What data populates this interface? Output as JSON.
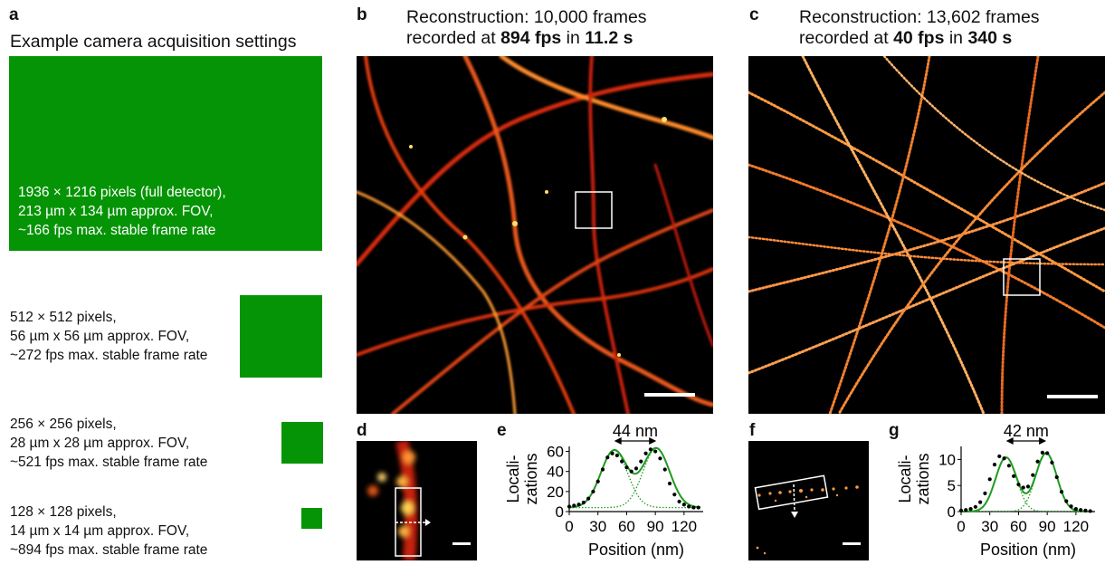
{
  "panels": {
    "a": {
      "label": "a",
      "title": "Example camera acquisition settings",
      "settings": [
        {
          "line1": "1936 × 1216 pixels (full detector),",
          "line2": "213 µm x 134 µm approx. FOV,",
          "line3": "~166 fps max. stable frame rate"
        },
        {
          "line1": "512 × 512 pixels,",
          "line2": "56 µm x 56 µm approx. FOV,",
          "line3": "~272 fps max. stable frame rate"
        },
        {
          "line1": "256 × 256 pixels,",
          "line2": "28 µm x 28 µm approx. FOV,",
          "line3": "~521 fps max. stable frame rate"
        },
        {
          "line1": "128 × 128 pixels,",
          "line2": "14 µm x 14 µm approx. FOV,",
          "line3": "~894 fps max. stable frame rate"
        }
      ],
      "box_color": "#059405"
    },
    "b": {
      "label": "b",
      "title_line1": "Reconstruction: 10,000 frames",
      "title_prefix": "recorded at ",
      "fps": "894 fps",
      "title_mid": " in ",
      "duration": "11.2 s"
    },
    "c": {
      "label": "c",
      "title_line1": "Reconstruction: 13,602 frames",
      "title_prefix": "recorded at ",
      "fps": "40 fps",
      "title_mid": " in ",
      "duration": "340 s"
    },
    "d": {
      "label": "d"
    },
    "e": {
      "label": "e"
    },
    "f": {
      "label": "f"
    },
    "g": {
      "label": "g"
    }
  },
  "chart_data": [
    {
      "panel": "e",
      "type": "scatter",
      "title": "",
      "annotation": "44 nm",
      "xlabel": "Position (nm)",
      "ylabel": "Locali-\nzations",
      "xlim": [
        0,
        140
      ],
      "ylim": [
        0,
        65
      ],
      "xticks": [
        0,
        30,
        60,
        90,
        120
      ],
      "yticks": [
        0,
        20,
        40,
        60
      ],
      "points": {
        "x": [
          0,
          5,
          10,
          15,
          20,
          25,
          30,
          35,
          40,
          45,
          50,
          55,
          60,
          65,
          70,
          75,
          80,
          85,
          90,
          95,
          100,
          105,
          110,
          115,
          120,
          125,
          130,
          135
        ],
        "y": [
          5,
          6,
          7,
          9,
          13,
          20,
          30,
          42,
          54,
          58,
          56,
          50,
          44,
          40,
          43,
          50,
          58,
          62,
          60,
          53,
          42,
          28,
          17,
          10,
          7,
          5,
          4,
          4
        ]
      },
      "fit_line_color": "#1e9b1e",
      "component_peaks": [
        47,
        91
      ],
      "component_sigma": 14,
      "component_amplitude": [
        57,
        59
      ],
      "baseline": 4
    },
    {
      "panel": "g",
      "type": "scatter",
      "title": "",
      "annotation": "42 nm",
      "xlabel": "Position (nm)",
      "ylabel": "Locali-\nzations",
      "xlim": [
        0,
        140
      ],
      "ylim": [
        0,
        12.5
      ],
      "xticks": [
        0,
        30,
        60,
        90,
        120
      ],
      "yticks": [
        0,
        5,
        10
      ],
      "points": {
        "x": [
          0,
          5,
          10,
          15,
          20,
          25,
          30,
          35,
          40,
          45,
          50,
          55,
          60,
          65,
          70,
          75,
          80,
          85,
          90,
          95,
          100,
          105,
          110,
          115,
          120,
          125,
          130,
          135
        ],
        "y": [
          0.2,
          0.3,
          0.5,
          0.9,
          1.8,
          3.5,
          6.2,
          9.0,
          10.6,
          10.2,
          8.8,
          6.8,
          5.2,
          4.6,
          4.8,
          7.0,
          9.6,
          11.3,
          11.2,
          9.4,
          6.6,
          3.8,
          2.0,
          1.0,
          0.5,
          0.3,
          0.2,
          0.1
        ]
      },
      "fit_line_color": "#1e9b1e",
      "component_peaks": [
        47,
        89
      ],
      "component_sigma": 11,
      "component_amplitude": [
        10.4,
        11.2
      ],
      "baseline": 0
    }
  ]
}
